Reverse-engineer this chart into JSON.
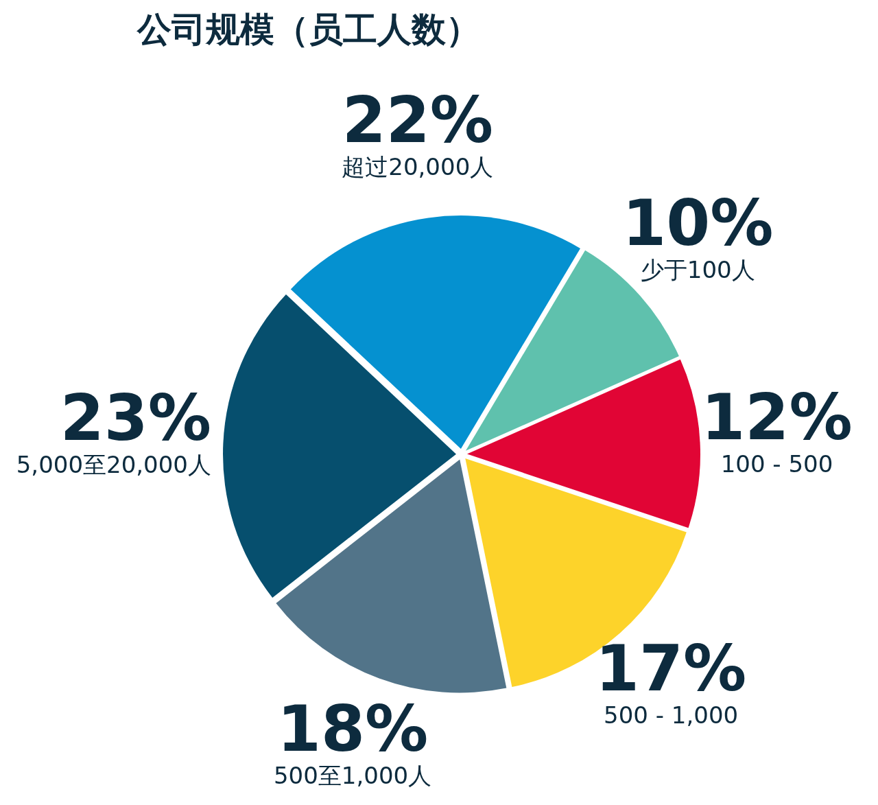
{
  "chart_data": {
    "type": "pie",
    "title": "公司规模（员工人数）",
    "categories": [
      "少于100人",
      "100 - 500",
      "500 - 1,000",
      "500至1,000人",
      "5,000至20,000人",
      "超过20,000人"
    ],
    "values": [
      10,
      12,
      17,
      18,
      23,
      22
    ],
    "value_labels": [
      "10%",
      "12%",
      "17%",
      "18%",
      "23%",
      "22%"
    ],
    "colors": [
      "#5fc1ad",
      "#e10535",
      "#fdd32a",
      "#527489",
      "#064f6e",
      "#0591d0"
    ]
  }
}
